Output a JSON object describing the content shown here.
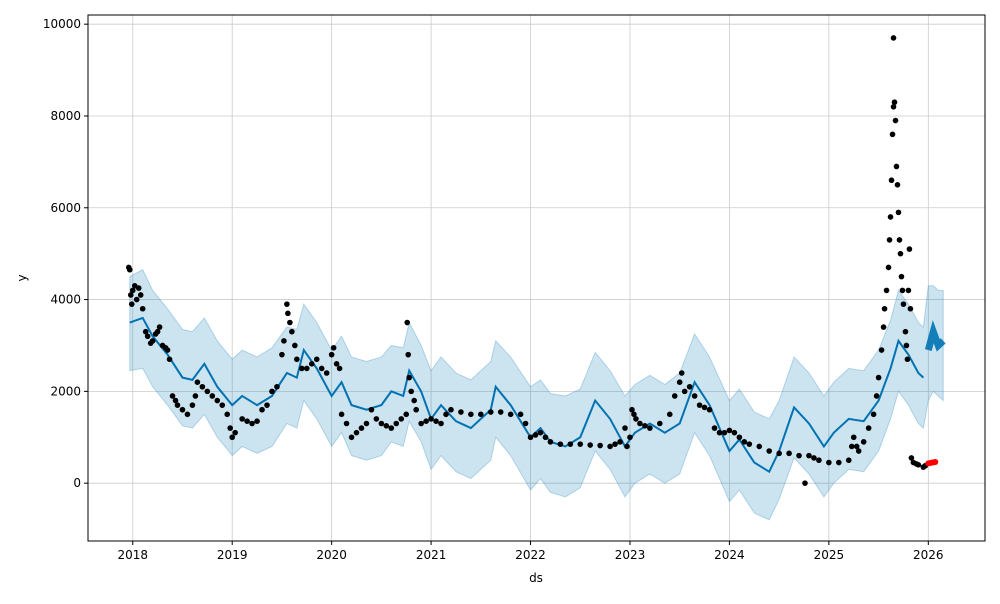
{
  "chart_data": {
    "type": "line",
    "title": "",
    "xlabel": "ds",
    "ylabel": "y",
    "xlim": [
      2017.55,
      2026.57
    ],
    "ylim": [
      -1260,
      10200
    ],
    "grid": true,
    "x_ticks": [
      2018,
      2019,
      2020,
      2021,
      2022,
      2023,
      2024,
      2025,
      2026
    ],
    "x_tick_labels": [
      "2018",
      "2019",
      "2020",
      "2021",
      "2022",
      "2023",
      "2024",
      "2025",
      "2026"
    ],
    "y_ticks": [
      0,
      2000,
      4000,
      6000,
      8000,
      10000
    ],
    "y_tick_labels": [
      "0",
      "2000",
      "4000",
      "6000",
      "8000",
      "10000"
    ],
    "colors": {
      "forecast": "#0072B2",
      "band": "#0072B2",
      "observed": "#000000",
      "recent": "#ff0000"
    },
    "forecast": [
      [
        2017.97,
        3500,
        2450,
        4500
      ],
      [
        2018.1,
        3600,
        2500,
        4650
      ],
      [
        2018.2,
        3200,
        2100,
        4200
      ],
      [
        2018.35,
        2800,
        1700,
        3800
      ],
      [
        2018.5,
        2300,
        1250,
        3350
      ],
      [
        2018.6,
        2250,
        1200,
        3300
      ],
      [
        2018.72,
        2600,
        1500,
        3600
      ],
      [
        2018.85,
        2100,
        1000,
        3100
      ],
      [
        2019.0,
        1700,
        600,
        2700
      ],
      [
        2019.1,
        1900,
        800,
        2900
      ],
      [
        2019.25,
        1700,
        650,
        2750
      ],
      [
        2019.4,
        1900,
        800,
        2950
      ],
      [
        2019.55,
        2400,
        1300,
        3400
      ],
      [
        2019.65,
        2300,
        1200,
        3350
      ],
      [
        2019.72,
        2900,
        1800,
        3900
      ],
      [
        2019.85,
        2500,
        1400,
        3500
      ],
      [
        2020.0,
        1900,
        800,
        2900
      ],
      [
        2020.1,
        2200,
        1100,
        3200
      ],
      [
        2020.2,
        1700,
        600,
        2750
      ],
      [
        2020.35,
        1600,
        500,
        2650
      ],
      [
        2020.5,
        1700,
        600,
        2750
      ],
      [
        2020.6,
        2000,
        900,
        3000
      ],
      [
        2020.72,
        1900,
        800,
        2950
      ],
      [
        2020.78,
        2450,
        1350,
        3500
      ],
      [
        2020.9,
        2000,
        900,
        3000
      ],
      [
        2021.0,
        1400,
        300,
        2450
      ],
      [
        2021.1,
        1700,
        600,
        2750
      ],
      [
        2021.25,
        1350,
        250,
        2400
      ],
      [
        2021.4,
        1200,
        100,
        2250
      ],
      [
        2021.5,
        1400,
        300,
        2450
      ],
      [
        2021.6,
        1600,
        500,
        2650
      ],
      [
        2021.65,
        2100,
        1000,
        3100
      ],
      [
        2021.8,
        1700,
        600,
        2750
      ],
      [
        2022.0,
        1000,
        -150,
        2100
      ],
      [
        2022.1,
        1200,
        100,
        2250
      ],
      [
        2022.2,
        900,
        -200,
        1950
      ],
      [
        2022.35,
        800,
        -300,
        1900
      ],
      [
        2022.5,
        1000,
        -100,
        2050
      ],
      [
        2022.65,
        1800,
        700,
        2850
      ],
      [
        2022.8,
        1400,
        300,
        2450
      ],
      [
        2022.95,
        800,
        -300,
        1900
      ],
      [
        2023.05,
        1100,
        0,
        2150
      ],
      [
        2023.2,
        1300,
        200,
        2350
      ],
      [
        2023.35,
        1100,
        0,
        2150
      ],
      [
        2023.5,
        1300,
        200,
        2400
      ],
      [
        2023.65,
        2200,
        1100,
        3250
      ],
      [
        2023.8,
        1700,
        600,
        2750
      ],
      [
        2024.0,
        700,
        -400,
        1800
      ],
      [
        2024.1,
        950,
        -150,
        2050
      ],
      [
        2024.25,
        450,
        -650,
        1550
      ],
      [
        2024.4,
        250,
        -800,
        1400
      ],
      [
        2024.5,
        700,
        -350,
        1800
      ],
      [
        2024.65,
        1650,
        550,
        2750
      ],
      [
        2024.8,
        1300,
        200,
        2400
      ],
      [
        2024.95,
        800,
        -300,
        1900
      ],
      [
        2025.05,
        1100,
        0,
        2200
      ],
      [
        2025.2,
        1400,
        300,
        2500
      ],
      [
        2025.35,
        1350,
        250,
        2450
      ],
      [
        2025.5,
        1800,
        700,
        2900
      ],
      [
        2025.62,
        2500,
        1400,
        3550
      ],
      [
        2025.7,
        3100,
        2000,
        4200
      ],
      [
        2025.8,
        2800,
        1700,
        3900
      ],
      [
        2025.9,
        2400,
        1300,
        3500
      ],
      [
        2025.95,
        2300,
        1200,
        3400
      ],
      [
        2026.0,
        2900,
        1800,
        4300
      ],
      [
        2026.05,
        3300,
        2000,
        4300
      ],
      [
        2026.1,
        3000,
        1900,
        4200
      ],
      [
        2026.15,
        3100,
        1800,
        4200
      ]
    ],
    "observed": [
      [
        2017.96,
        4700
      ],
      [
        2017.97,
        4650
      ],
      [
        2017.98,
        4100
      ],
      [
        2017.99,
        3900
      ],
      [
        2018.0,
        4200
      ],
      [
        2018.02,
        4300
      ],
      [
        2018.04,
        4000
      ],
      [
        2018.06,
        4250
      ],
      [
        2018.08,
        4100
      ],
      [
        2018.1,
        3800
      ],
      [
        2018.13,
        3300
      ],
      [
        2018.15,
        3200
      ],
      [
        2018.18,
        3050
      ],
      [
        2018.2,
        3100
      ],
      [
        2018.23,
        3250
      ],
      [
        2018.25,
        3300
      ],
      [
        2018.27,
        3400
      ],
      [
        2018.3,
        3000
      ],
      [
        2018.33,
        2950
      ],
      [
        2018.35,
        2900
      ],
      [
        2018.37,
        2700
      ],
      [
        2018.4,
        1900
      ],
      [
        2018.43,
        1800
      ],
      [
        2018.45,
        1700
      ],
      [
        2018.5,
        1600
      ],
      [
        2018.55,
        1500
      ],
      [
        2018.6,
        1700
      ],
      [
        2018.63,
        1900
      ],
      [
        2018.65,
        2200
      ],
      [
        2018.7,
        2100
      ],
      [
        2018.75,
        2000
      ],
      [
        2018.8,
        1900
      ],
      [
        2018.85,
        1800
      ],
      [
        2018.9,
        1700
      ],
      [
        2018.95,
        1500
      ],
      [
        2018.98,
        1200
      ],
      [
        2019.0,
        1000
      ],
      [
        2019.03,
        1100
      ],
      [
        2019.1,
        1400
      ],
      [
        2019.15,
        1350
      ],
      [
        2019.2,
        1300
      ],
      [
        2019.25,
        1350
      ],
      [
        2019.3,
        1600
      ],
      [
        2019.35,
        1700
      ],
      [
        2019.4,
        2000
      ],
      [
        2019.45,
        2100
      ],
      [
        2019.5,
        2800
      ],
      [
        2019.52,
        3100
      ],
      [
        2019.55,
        3900
      ],
      [
        2019.56,
        3700
      ],
      [
        2019.58,
        3500
      ],
      [
        2019.6,
        3300
      ],
      [
        2019.63,
        3000
      ],
      [
        2019.65,
        2700
      ],
      [
        2019.7,
        2500
      ],
      [
        2019.75,
        2500
      ],
      [
        2019.8,
        2600
      ],
      [
        2019.85,
        2700
      ],
      [
        2019.9,
        2500
      ],
      [
        2019.95,
        2400
      ],
      [
        2020.0,
        2800
      ],
      [
        2020.02,
        2950
      ],
      [
        2020.05,
        2600
      ],
      [
        2020.08,
        2500
      ],
      [
        2020.1,
        1500
      ],
      [
        2020.15,
        1300
      ],
      [
        2020.2,
        1000
      ],
      [
        2020.25,
        1100
      ],
      [
        2020.3,
        1200
      ],
      [
        2020.35,
        1300
      ],
      [
        2020.4,
        1600
      ],
      [
        2020.45,
        1400
      ],
      [
        2020.5,
        1300
      ],
      [
        2020.55,
        1250
      ],
      [
        2020.6,
        1200
      ],
      [
        2020.65,
        1300
      ],
      [
        2020.7,
        1400
      ],
      [
        2020.75,
        1500
      ],
      [
        2020.76,
        3500
      ],
      [
        2020.77,
        2800
      ],
      [
        2020.78,
        2300
      ],
      [
        2020.8,
        2000
      ],
      [
        2020.83,
        1800
      ],
      [
        2020.85,
        1600
      ],
      [
        2020.9,
        1300
      ],
      [
        2020.95,
        1350
      ],
      [
        2021.0,
        1400
      ],
      [
        2021.05,
        1350
      ],
      [
        2021.1,
        1300
      ],
      [
        2021.15,
        1500
      ],
      [
        2021.2,
        1600
      ],
      [
        2021.3,
        1550
      ],
      [
        2021.4,
        1500
      ],
      [
        2021.5,
        1500
      ],
      [
        2021.6,
        1550
      ],
      [
        2021.7,
        1550
      ],
      [
        2021.8,
        1500
      ],
      [
        2021.9,
        1500
      ],
      [
        2021.95,
        1300
      ],
      [
        2022.0,
        1000
      ],
      [
        2022.05,
        1050
      ],
      [
        2022.1,
        1100
      ],
      [
        2022.15,
        1000
      ],
      [
        2022.2,
        900
      ],
      [
        2022.3,
        850
      ],
      [
        2022.4,
        850
      ],
      [
        2022.5,
        850
      ],
      [
        2022.6,
        830
      ],
      [
        2022.7,
        820
      ],
      [
        2022.8,
        800
      ],
      [
        2022.85,
        850
      ],
      [
        2022.9,
        900
      ],
      [
        2022.95,
        1200
      ],
      [
        2022.97,
        800
      ],
      [
        2023.0,
        1000
      ],
      [
        2023.02,
        1600
      ],
      [
        2023.04,
        1500
      ],
      [
        2023.06,
        1400
      ],
      [
        2023.1,
        1300
      ],
      [
        2023.15,
        1250
      ],
      [
        2023.2,
        1200
      ],
      [
        2023.3,
        1300
      ],
      [
        2023.4,
        1500
      ],
      [
        2023.45,
        1900
      ],
      [
        2023.5,
        2200
      ],
      [
        2023.52,
        2400
      ],
      [
        2023.55,
        2000
      ],
      [
        2023.6,
        2100
      ],
      [
        2023.65,
        1900
      ],
      [
        2023.7,
        1700
      ],
      [
        2023.75,
        1650
      ],
      [
        2023.8,
        1600
      ],
      [
        2023.85,
        1200
      ],
      [
        2023.9,
        1100
      ],
      [
        2023.95,
        1100
      ],
      [
        2024.0,
        1150
      ],
      [
        2024.05,
        1100
      ],
      [
        2024.1,
        1000
      ],
      [
        2024.15,
        900
      ],
      [
        2024.2,
        850
      ],
      [
        2024.3,
        800
      ],
      [
        2024.4,
        700
      ],
      [
        2024.5,
        650
      ],
      [
        2024.6,
        650
      ],
      [
        2024.7,
        600
      ],
      [
        2024.76,
        0
      ],
      [
        2024.8,
        600
      ],
      [
        2024.85,
        550
      ],
      [
        2024.9,
        500
      ],
      [
        2025.0,
        450
      ],
      [
        2025.1,
        450
      ],
      [
        2025.2,
        500
      ],
      [
        2025.23,
        800
      ],
      [
        2025.25,
        1000
      ],
      [
        2025.28,
        800
      ],
      [
        2025.3,
        700
      ],
      [
        2025.35,
        900
      ],
      [
        2025.4,
        1200
      ],
      [
        2025.45,
        1500
      ],
      [
        2025.48,
        1900
      ],
      [
        2025.5,
        2300
      ],
      [
        2025.53,
        2900
      ],
      [
        2025.55,
        3400
      ],
      [
        2025.56,
        3800
      ],
      [
        2025.58,
        4200
      ],
      [
        2025.6,
        4700
      ],
      [
        2025.61,
        5300
      ],
      [
        2025.62,
        5800
      ],
      [
        2025.63,
        6600
      ],
      [
        2025.64,
        7600
      ],
      [
        2025.65,
        8200
      ],
      [
        2025.65,
        9700
      ],
      [
        2025.66,
        8300
      ],
      [
        2025.67,
        7900
      ],
      [
        2025.68,
        6900
      ],
      [
        2025.69,
        6500
      ],
      [
        2025.7,
        5900
      ],
      [
        2025.71,
        5300
      ],
      [
        2025.72,
        5000
      ],
      [
        2025.73,
        4500
      ],
      [
        2025.74,
        4200
      ],
      [
        2025.75,
        3900
      ],
      [
        2025.77,
        3300
      ],
      [
        2025.78,
        3000
      ],
      [
        2025.79,
        2700
      ],
      [
        2025.8,
        4200
      ],
      [
        2025.81,
        5100
      ],
      [
        2025.82,
        3800
      ],
      [
        2025.83,
        550
      ],
      [
        2025.85,
        450
      ],
      [
        2025.88,
        420
      ],
      [
        2025.9,
        400
      ],
      [
        2025.95,
        350
      ],
      [
        2025.97,
        380
      ]
    ],
    "recent": [
      [
        2026.0,
        430
      ],
      [
        2026.02,
        440
      ],
      [
        2026.04,
        450
      ],
      [
        2026.06,
        455
      ],
      [
        2026.07,
        460
      ]
    ]
  }
}
